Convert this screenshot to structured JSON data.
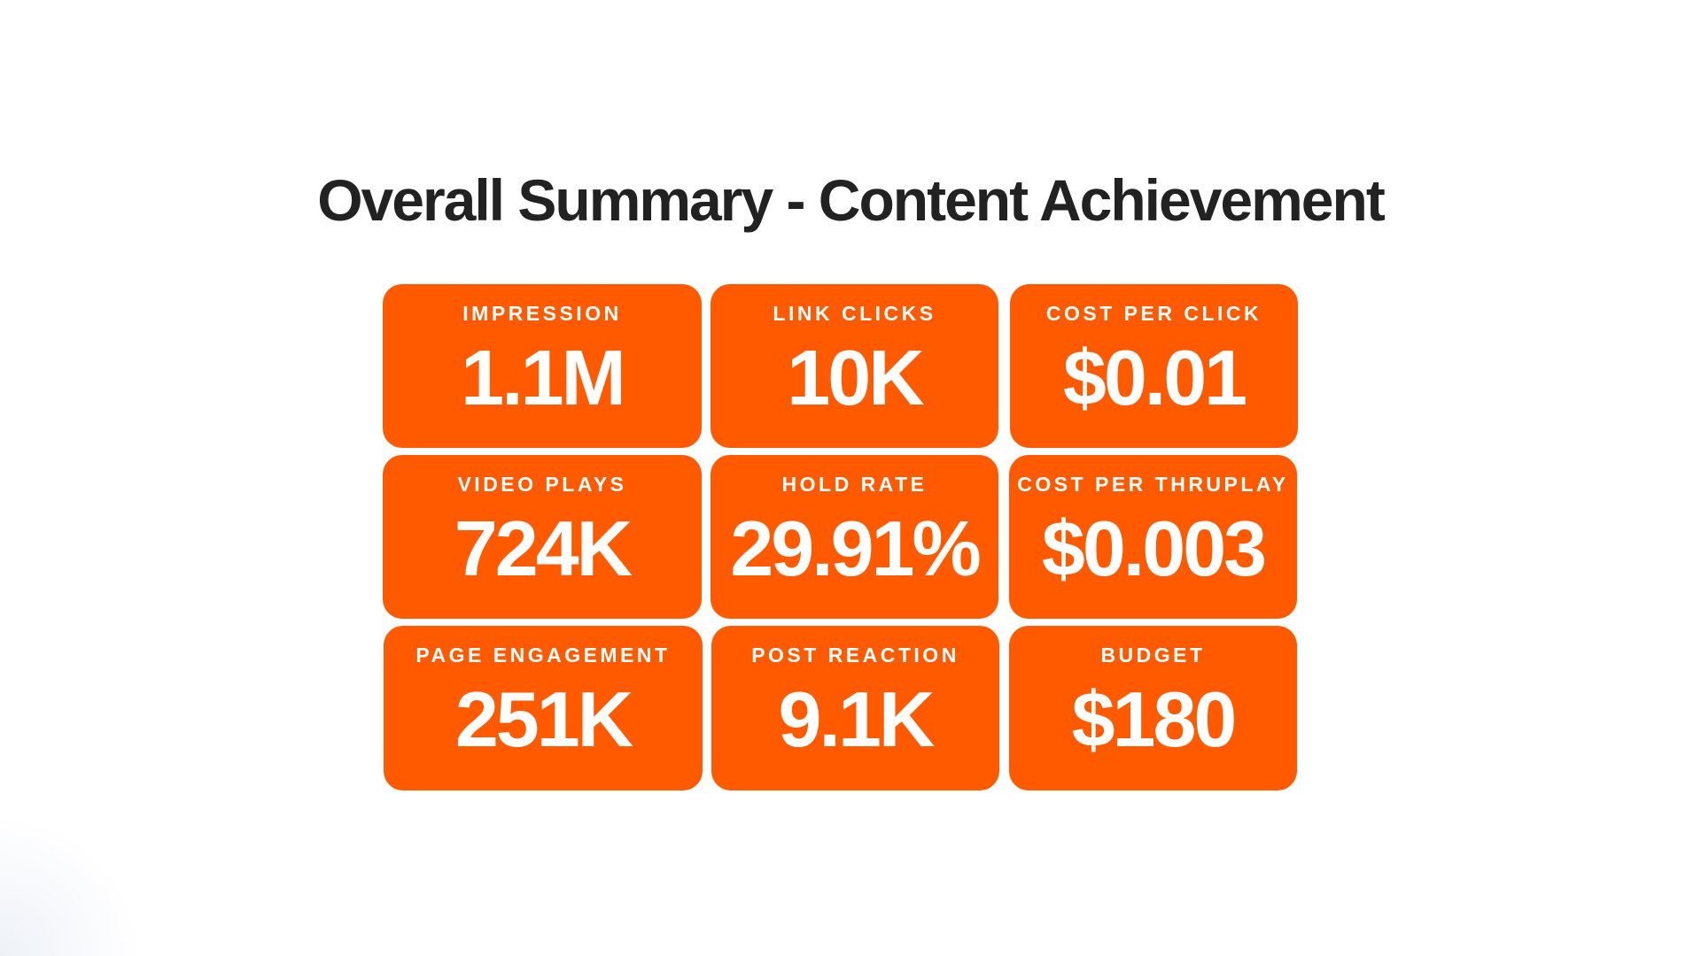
{
  "title": "Overall Summary - Content Achievement",
  "accent_color": "#FF5A00",
  "metrics": [
    {
      "label": "IMPRESSION",
      "value": "1.1M"
    },
    {
      "label": "LINK CLICKS",
      "value": "10K"
    },
    {
      "label": "COST PER CLICK",
      "value": "$0.01"
    },
    {
      "label": "VIDEO PLAYS",
      "value": "724K"
    },
    {
      "label": "HOLD RATE",
      "value": "29.91%"
    },
    {
      "label": "COST PER THRUPLAY",
      "value": "$0.003"
    },
    {
      "label": "PAGE ENGAGEMENT",
      "value": "251K"
    },
    {
      "label": "POST REACTION",
      "value": "9.1K"
    },
    {
      "label": "BUDGET",
      "value": "$180"
    }
  ]
}
